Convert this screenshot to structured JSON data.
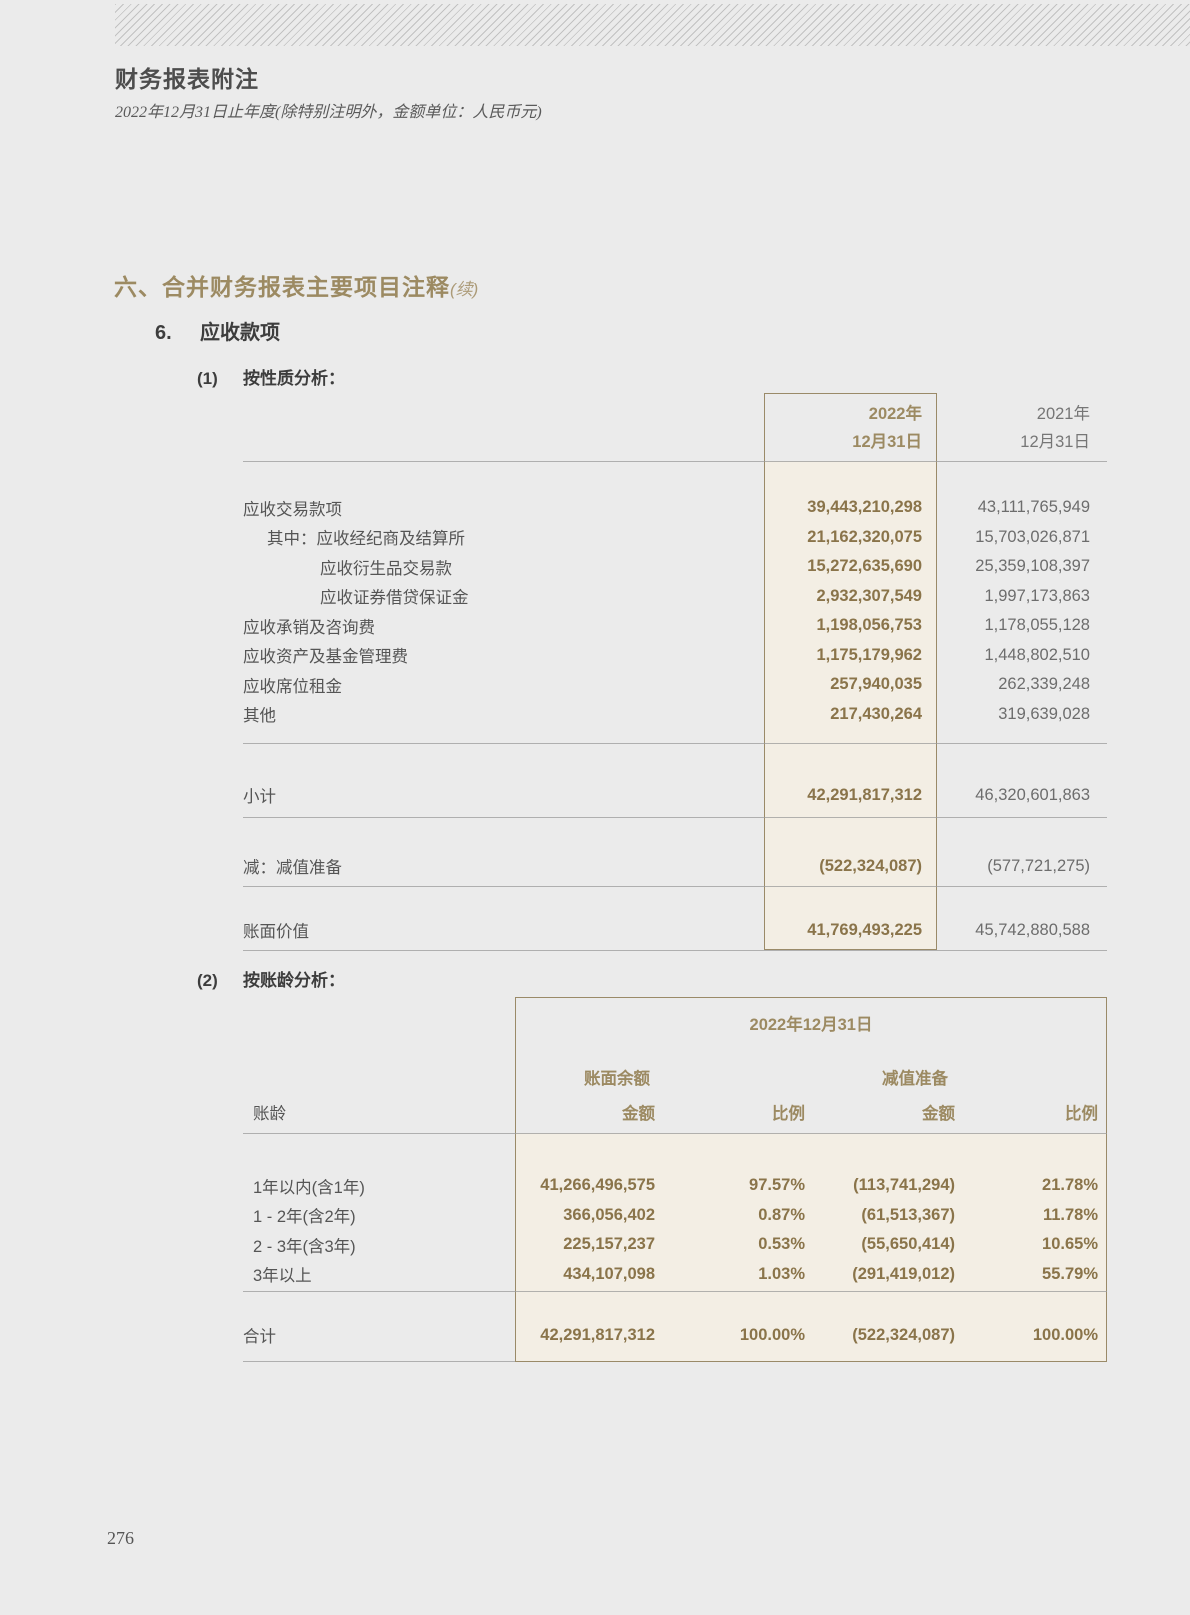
{
  "page": {
    "header_title": "财务报表附注",
    "header_subtitle": "2022年12月31日止年度(除特别注明外，金额单位：人民币元)",
    "page_number": "276"
  },
  "section": {
    "title": "六、合并财务报表主要项目注释",
    "title_suffix": "(续)",
    "item_number": "6.",
    "item_title": "应收款项"
  },
  "table1": {
    "heading_number": "(1)",
    "heading": "按性质分析：",
    "col_2022_line1": "2022年",
    "col_2022_line2": "12月31日",
    "col_2021_line1": "2021年",
    "col_2021_line2": "12月31日",
    "rows": [
      {
        "label": "应收交易款项",
        "v2022": "39,443,210,298",
        "v2021": "43,111,765,949"
      },
      {
        "label": "其中：应收经纪商及结算所",
        "v2022": "21,162,320,075",
        "v2021": "15,703,026,871"
      },
      {
        "label": "应收衍生品交易款",
        "v2022": "15,272,635,690",
        "v2021": "25,359,108,397"
      },
      {
        "label": "应收证券借贷保证金",
        "v2022": "2,932,307,549",
        "v2021": "1,997,173,863"
      },
      {
        "label": "应收承销及咨询费",
        "v2022": "1,198,056,753",
        "v2021": "1,178,055,128"
      },
      {
        "label": "应收资产及基金管理费",
        "v2022": "1,175,179,962",
        "v2021": "1,448,802,510"
      },
      {
        "label": "应收席位租金",
        "v2022": "257,940,035",
        "v2021": "262,339,248"
      },
      {
        "label": "其他",
        "v2022": "217,430,264",
        "v2021": "319,639,028"
      }
    ],
    "subtotal": {
      "label": "小计",
      "v2022": "42,291,817,312",
      "v2021": "46,320,601,863"
    },
    "impairment": {
      "label": "减：减值准备",
      "v2022": "(522,324,087)",
      "v2021": "(577,721,275)"
    },
    "carrying": {
      "label": "账面价值",
      "v2022": "41,769,493,225",
      "v2021": "45,742,880,588"
    }
  },
  "table2": {
    "heading_number": "(2)",
    "heading": "按账龄分析：",
    "period": "2022年12月31日",
    "group_balance": "账面余额",
    "group_impairment": "减值准备",
    "col_age": "账龄",
    "col_amount": "金额",
    "col_ratio": "比例",
    "rows": [
      {
        "label": "1年以内(含1年)",
        "amount1": "41,266,496,575",
        "ratio1": "97.57%",
        "amount2": "(113,741,294)",
        "ratio2": "21.78%"
      },
      {
        "label": "1 - 2年(含2年)",
        "amount1": "366,056,402",
        "ratio1": "0.87%",
        "amount2": "(61,513,367)",
        "ratio2": "11.78%"
      },
      {
        "label": "2 - 3年(含3年)",
        "amount1": "225,157,237",
        "ratio1": "0.53%",
        "amount2": "(55,650,414)",
        "ratio2": "10.65%"
      },
      {
        "label": "3年以上",
        "amount1": "434,107,098",
        "ratio1": "1.03%",
        "amount2": "(291,419,012)",
        "ratio2": "55.79%"
      }
    ],
    "total": {
      "label": "合计",
      "amount1": "42,291,817,312",
      "ratio1": "100.00%",
      "amount2": "(522,324,087)",
      "ratio2": "100.00%"
    }
  },
  "colors": {
    "page_background": "#ebebeb",
    "accent_gold": "#9c8a62",
    "value_brown": "#8a744a",
    "highlight_beige": "#f3eee4",
    "box_border": "#9a8a68",
    "rule_gray": "#9b9b9b",
    "text_dark": "#454545",
    "text_gray": "#6d6d6d"
  }
}
